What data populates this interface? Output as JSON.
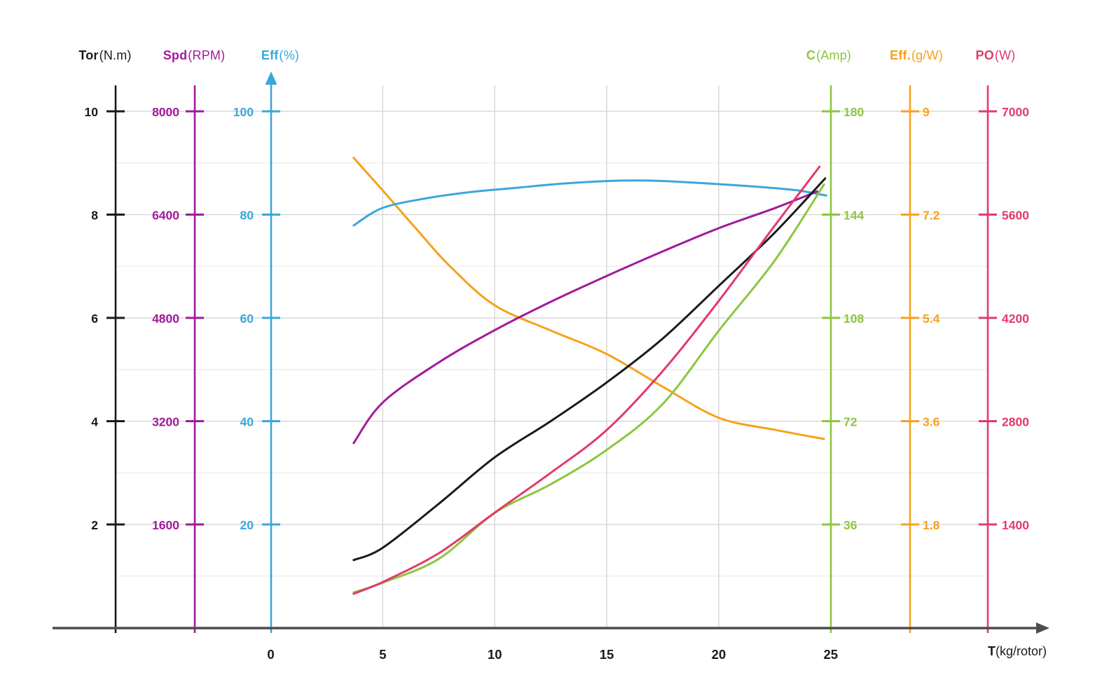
{
  "page": {
    "background": "#ffffff"
  },
  "chart_data": {
    "type": "line",
    "title": "",
    "x": {
      "label_bold": "T",
      "label_rest": "(kg/rotor)",
      "min": 0,
      "max": 25,
      "tick_values": [
        0,
        5,
        10,
        15,
        20,
        25
      ],
      "tick_labels": [
        "0",
        "5",
        "10",
        "15",
        "20",
        "25"
      ],
      "gridline_values": [
        5,
        10,
        15,
        20
      ]
    },
    "y_axes": [
      {
        "id": "tor",
        "title_bold": "Tor",
        "title_rest": "(N.m)",
        "side": "left",
        "color": "#1a1a1a",
        "max": 10,
        "tick_values": [
          10,
          8,
          6,
          4,
          2
        ],
        "tick_labels": [
          "10",
          "8",
          "6",
          "4",
          "2"
        ]
      },
      {
        "id": "spd",
        "title_bold": "Spd",
        "title_rest": "(RPM)",
        "side": "left",
        "color": "#a21a9c",
        "max": 8000,
        "tick_values": [
          8000,
          6400,
          4800,
          3200,
          1600
        ],
        "tick_labels": [
          "8000",
          "6400",
          "4800",
          "3200",
          "1600"
        ]
      },
      {
        "id": "eff",
        "title_bold": "Eff",
        "title_rest": "(%)",
        "side": "left",
        "color": "#3aa7db",
        "max": 100,
        "tick_values": [
          100,
          80,
          60,
          40,
          20
        ],
        "tick_labels": [
          "100",
          "80",
          "60",
          "40",
          "20"
        ],
        "arrow": true
      },
      {
        "id": "c",
        "title_bold": "C",
        "title_rest": "(Amp)",
        "side": "right",
        "color": "#8dc63f",
        "max": 180,
        "tick_values": [
          180,
          144,
          108,
          72,
          36
        ],
        "tick_labels": [
          "180",
          "144",
          "108",
          "72",
          "36"
        ]
      },
      {
        "id": "effgw",
        "title_bold": "Eff.",
        "title_rest": "(g/W)",
        "side": "right",
        "color": "#f7a11b",
        "max": 9,
        "tick_values": [
          9,
          7.2,
          5.4,
          3.6,
          1.8
        ],
        "tick_labels": [
          "9",
          "7.2",
          "5.4",
          "3.6",
          "1.8"
        ]
      },
      {
        "id": "po",
        "title_bold": "PO",
        "title_rest": "(W)",
        "side": "right",
        "color": "#e23a6b",
        "max": 7000,
        "tick_values": [
          7000,
          5600,
          4200,
          2800,
          1400
        ],
        "tick_labels": [
          "7000",
          "5600",
          "4200",
          "2800",
          "1400"
        ]
      }
    ],
    "series": [
      {
        "name": "Eff.(g/W)",
        "axis": "effgw",
        "color": "#f7a11b",
        "points": [
          [
            3.7,
            8.19
          ],
          [
            5,
            7.62
          ],
          [
            6.5,
            6.95
          ],
          [
            8,
            6.3
          ],
          [
            10,
            5.62
          ],
          [
            12.5,
            5.18
          ],
          [
            15,
            4.77
          ],
          [
            17.5,
            4.2
          ],
          [
            20,
            3.66
          ],
          [
            22.5,
            3.45
          ],
          [
            24.7,
            3.29
          ]
        ]
      },
      {
        "name": "Eff(%)",
        "axis": "eff",
        "color": "#3aa7db",
        "points": [
          [
            3.7,
            77.9
          ],
          [
            5,
            81.3
          ],
          [
            7,
            83.2
          ],
          [
            9,
            84.4
          ],
          [
            11,
            85.2
          ],
          [
            13,
            86.0
          ],
          [
            15,
            86.5
          ],
          [
            16.5,
            86.6
          ],
          [
            18,
            86.4
          ],
          [
            20,
            85.9
          ],
          [
            22,
            85.3
          ],
          [
            23.5,
            84.7
          ],
          [
            24.8,
            83.7
          ]
        ]
      },
      {
        "name": "Spd(RPM)",
        "axis": "spd",
        "color": "#a21a9c",
        "points": [
          [
            3.7,
            2860
          ],
          [
            5,
            3490
          ],
          [
            7.5,
            4110
          ],
          [
            10,
            4610
          ],
          [
            12.5,
            5050
          ],
          [
            15,
            5450
          ],
          [
            17.5,
            5830
          ],
          [
            20,
            6190
          ],
          [
            22.5,
            6500
          ],
          [
            24.4,
            6760
          ]
        ]
      },
      {
        "name": "Tor(N.m)",
        "axis": "tor",
        "color": "#1a1a1a",
        "points": [
          [
            3.7,
            1.31
          ],
          [
            5,
            1.55
          ],
          [
            7.5,
            2.4
          ],
          [
            10,
            3.3
          ],
          [
            12.5,
            4.0
          ],
          [
            15,
            4.75
          ],
          [
            17.5,
            5.6
          ],
          [
            20,
            6.62
          ],
          [
            22.5,
            7.65
          ],
          [
            24.75,
            8.7
          ]
        ]
      },
      {
        "name": "C(Amp)",
        "axis": "c",
        "color": "#8dc63f",
        "points": [
          [
            3.7,
            12.3
          ],
          [
            5,
            15.7
          ],
          [
            7.5,
            24
          ],
          [
            10,
            40
          ],
          [
            12.5,
            50
          ],
          [
            15,
            62
          ],
          [
            17.5,
            78
          ],
          [
            20,
            103.5
          ],
          [
            22.5,
            128
          ],
          [
            24.7,
            154.5
          ]
        ]
      },
      {
        "name": "PO(W)",
        "axis": "po",
        "color": "#e23a6b",
        "points": [
          [
            3.7,
            460
          ],
          [
            5,
            620
          ],
          [
            7.5,
            1010
          ],
          [
            10,
            1560
          ],
          [
            12.5,
            2100
          ],
          [
            15,
            2680
          ],
          [
            17.5,
            3480
          ],
          [
            20,
            4430
          ],
          [
            22.5,
            5450
          ],
          [
            24.5,
            6250
          ]
        ]
      }
    ],
    "grid": {
      "major_color": "#d9d9d9",
      "minor_color": "#ececec",
      "x_axis_color": "#4d4d4d",
      "minor_row_fractions": [
        0.1,
        0.3,
        0.5,
        0.7,
        0.9
      ],
      "major_row_fractions": [
        0.2,
        0.4,
        0.6,
        0.8,
        1.0
      ]
    }
  }
}
